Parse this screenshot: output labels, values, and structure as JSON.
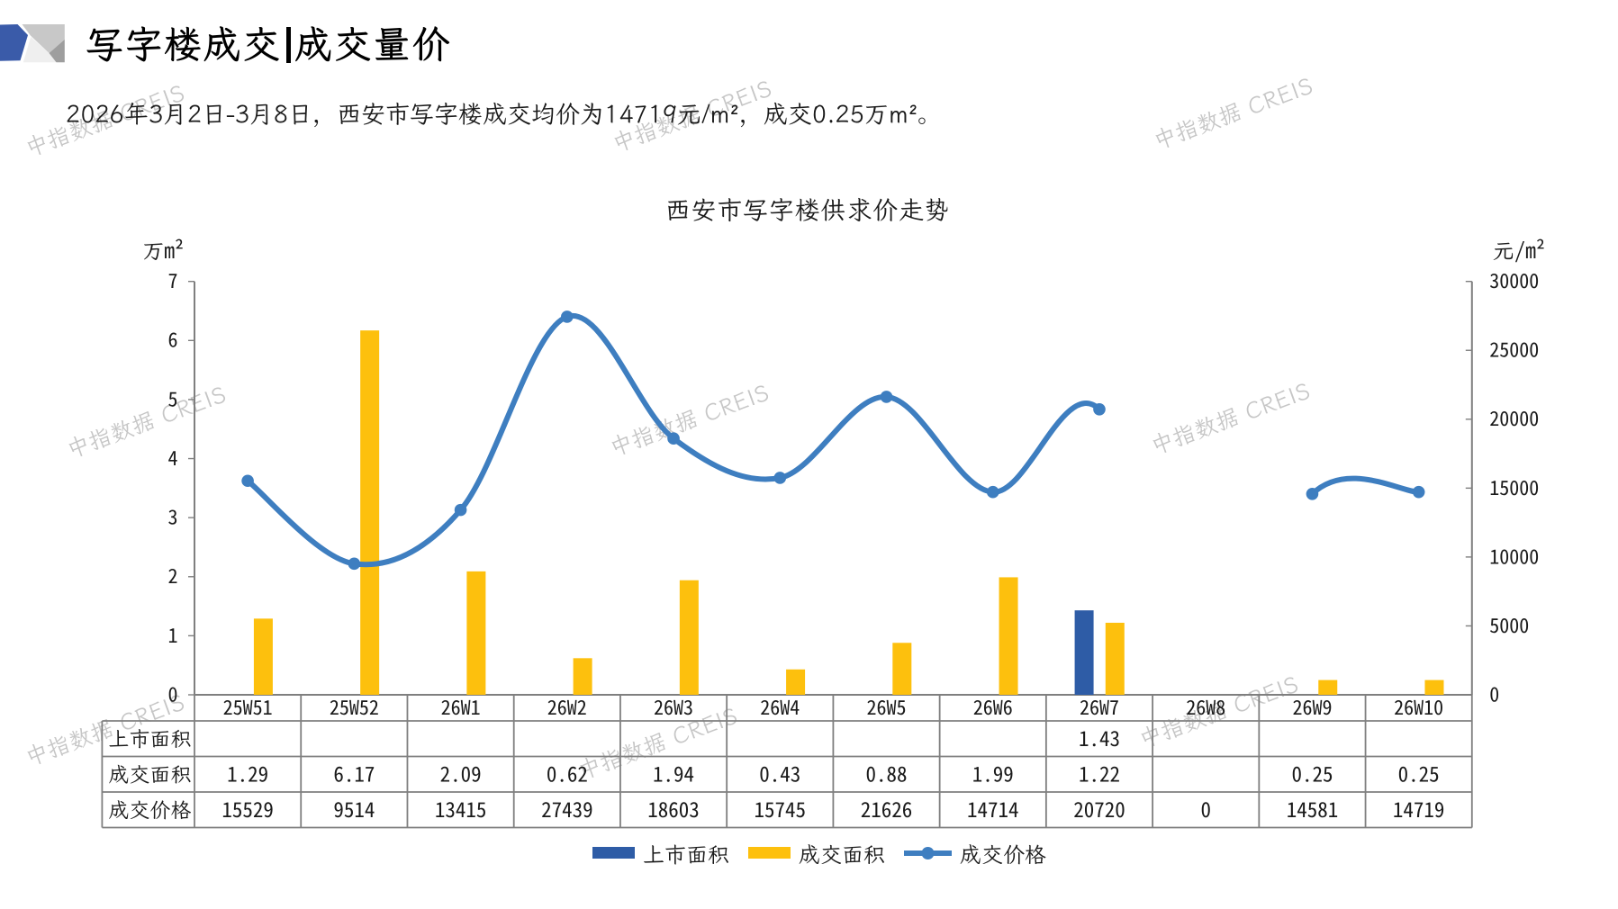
{
  "page": {
    "title_full": "写字楼成交|成交量价",
    "title_left": "写字楼成交",
    "title_separator": "|",
    "title_right": "成交量价",
    "subtitle": "2026年3月2日-3月8日，西安市写字楼成交均价为14719元/m²，成交0.25万m²。",
    "watermark_text": "中指数据 CREIS"
  },
  "chart_data": {
    "type": "combo",
    "title": "西安市写字楼供求价走势",
    "categories": [
      "25W51",
      "25W52",
      "26W1",
      "26W2",
      "26W3",
      "26W4",
      "26W5",
      "26W6",
      "26W7",
      "26W8",
      "26W9",
      "26W10"
    ],
    "series": [
      {
        "name": "上市面积",
        "type": "bar",
        "axis": "left",
        "color": "#2e5ca6",
        "values": [
          null,
          null,
          null,
          null,
          null,
          null,
          null,
          null,
          1.43,
          null,
          null,
          null
        ]
      },
      {
        "name": "成交面积",
        "type": "bar",
        "axis": "left",
        "color": "#fdc00d",
        "values": [
          1.29,
          6.17,
          2.09,
          0.62,
          1.94,
          0.43,
          0.88,
          1.99,
          1.22,
          null,
          0.25,
          0.25
        ]
      },
      {
        "name": "成交价格",
        "type": "line",
        "axis": "right",
        "color": "#3e7ec0",
        "smooth": true,
        "values": [
          15529,
          9514,
          13415,
          27439,
          18603,
          15745,
          21626,
          14714,
          20720,
          null,
          14581,
          14719
        ]
      }
    ],
    "left_axis": {
      "unit": "万m²",
      "min": 0,
      "max": 7,
      "step": 1,
      "labels": [
        "0",
        "1",
        "2",
        "3",
        "4",
        "5",
        "6",
        "7"
      ]
    },
    "right_axis": {
      "unit": "元/m²",
      "min": 0,
      "max": 30000,
      "step": 5000,
      "labels": [
        "0",
        "5000",
        "10000",
        "15000",
        "20000",
        "25000",
        "30000"
      ]
    },
    "grid": false,
    "legend_position": "bottom",
    "table": {
      "row_labels": [
        "上市面积",
        "成交面积",
        "成交价格"
      ],
      "rows": [
        [
          "",
          "",
          "",
          "",
          "",
          "",
          "",
          "",
          "1.43",
          "",
          "",
          ""
        ],
        [
          "1.29",
          "6.17",
          "2.09",
          "0.62",
          "1.94",
          "0.43",
          "0.88",
          "1.99",
          "1.22",
          "",
          "0.25",
          "0.25"
        ],
        [
          "15529",
          "9514",
          "13415",
          "27439",
          "18603",
          "15745",
          "21626",
          "14714",
          "20720",
          "0",
          "14581",
          "14719"
        ]
      ]
    }
  }
}
